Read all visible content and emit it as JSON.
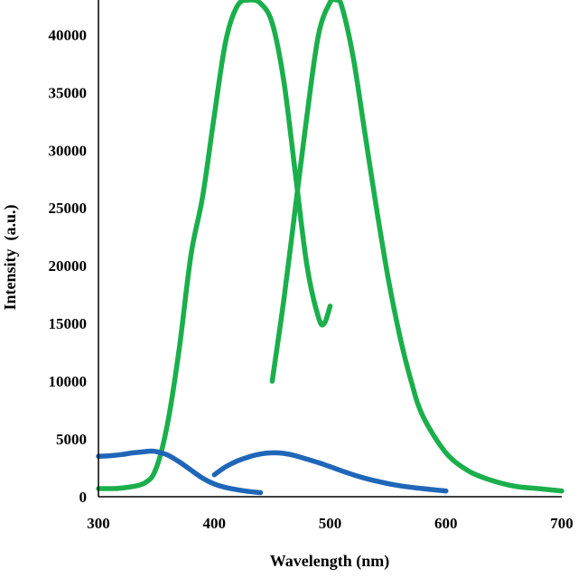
{
  "chart_data": {
    "type": "line",
    "title": "",
    "xlabel": "Wavelength (nm)",
    "ylabel": "Intensity  (a.u.)",
    "xlim": [
      300,
      700
    ],
    "ylim": [
      0,
      43000
    ],
    "xticks": [
      300,
      400,
      500,
      600,
      700
    ],
    "yticks": [
      0,
      5000,
      10000,
      15000,
      20000,
      25000,
      30000,
      35000,
      40000
    ],
    "grid": false,
    "legend": "none",
    "series": [
      {
        "color": "#1aaf4b",
        "x": [
          300,
          320,
          340,
          350,
          360,
          370,
          380,
          390,
          400,
          410,
          420,
          430,
          440,
          450,
          460,
          470,
          480,
          490,
          495,
          500
        ],
        "y": [
          700,
          750,
          1200,
          2500,
          6500,
          13000,
          21000,
          26000,
          33000,
          39500,
          42500,
          43000,
          42700,
          41000,
          36000,
          28000,
          20000,
          15500,
          15000,
          16500
        ]
      },
      {
        "color": "#1aaf4b",
        "x": [
          450,
          460,
          470,
          480,
          490,
          500,
          505,
          510,
          520,
          530,
          540,
          550,
          560,
          570,
          580,
          600,
          620,
          640,
          660,
          680,
          700
        ],
        "y": [
          10000,
          17000,
          25000,
          33000,
          40000,
          42800,
          43000,
          42500,
          38000,
          31500,
          25000,
          19000,
          14000,
          10000,
          7000,
          3800,
          2200,
          1400,
          900,
          700,
          500
        ]
      },
      {
        "color": "#1f66b8",
        "x": [
          300,
          310,
          320,
          330,
          340,
          345,
          350,
          360,
          370,
          380,
          390,
          400,
          410,
          420,
          430,
          440
        ],
        "y": [
          3500,
          3550,
          3650,
          3800,
          3900,
          3950,
          3900,
          3600,
          3000,
          2300,
          1600,
          1100,
          800,
          600,
          450,
          350
        ]
      },
      {
        "color": "#1f66b8",
        "x": [
          400,
          410,
          420,
          430,
          440,
          450,
          460,
          470,
          480,
          490,
          500,
          520,
          540,
          560,
          580,
          600
        ],
        "y": [
          1900,
          2600,
          3100,
          3450,
          3700,
          3800,
          3750,
          3550,
          3250,
          2950,
          2600,
          1900,
          1350,
          950,
          700,
          500
        ]
      }
    ]
  }
}
